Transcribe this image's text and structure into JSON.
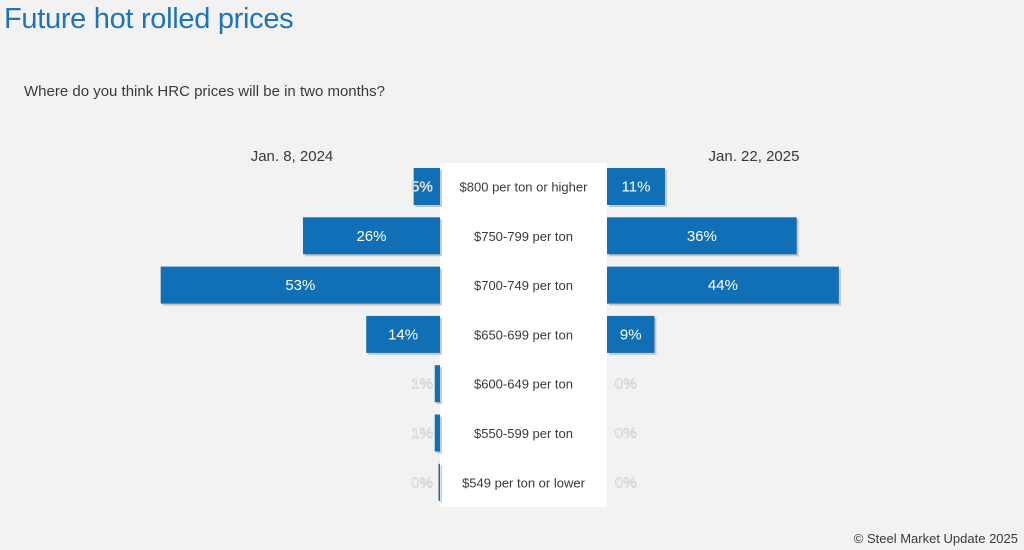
{
  "title": "Future hot rolled prices",
  "question": "Where do you think HRC prices will be in two months?",
  "copyright": "© Steel Market Update 2025",
  "colors": {
    "bar": "#1170b5",
    "bar_shadow": "#a9a9a9",
    "background": "#f2f2f2",
    "center_panel": "#ffffff",
    "title": "#1f73b7",
    "label_inside": "#ffffff",
    "label_outside": "#ffffff"
  },
  "chart_data": {
    "type": "bar",
    "orientation": "horizontal",
    "layout": "back-to-back",
    "categories": [
      "$800 per ton or higher",
      "$750-799 per ton",
      "$700-749 per ton",
      "$650-699 per ton",
      "$600-649 per ton",
      "$550-599 per ton",
      "$549 per ton or lower"
    ],
    "series": [
      {
        "name": "Jan. 8, 2024",
        "side": "left",
        "values": [
          5,
          26,
          53,
          14,
          1,
          1,
          0
        ],
        "labels": [
          "5%",
          "26%",
          "53%",
          "14%",
          "1%",
          "1%",
          "0%"
        ]
      },
      {
        "name": "Jan. 22, 2025",
        "side": "right",
        "values": [
          11,
          36,
          44,
          9,
          0,
          0,
          0
        ],
        "labels": [
          "11%",
          "36%",
          "44%",
          "9%",
          "0%",
          "0%",
          "0%"
        ]
      }
    ],
    "unit": "%",
    "grid": false
  }
}
